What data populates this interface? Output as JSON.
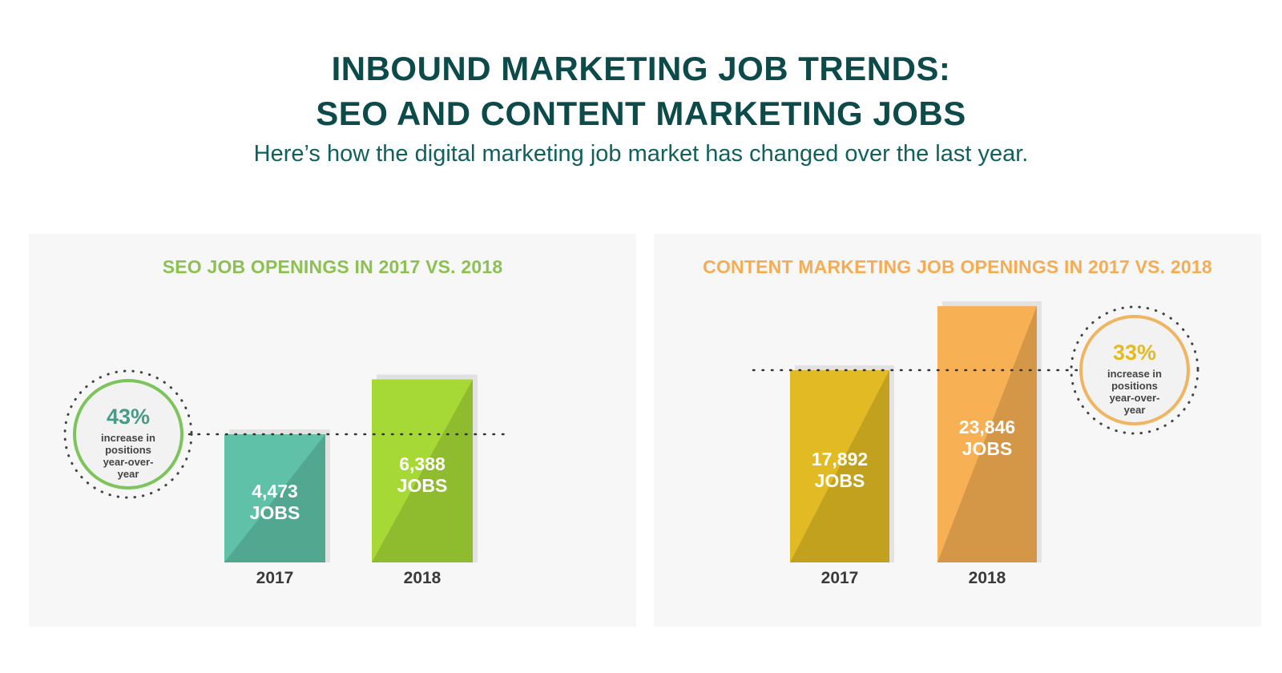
{
  "header": {
    "title_line1": "INBOUND MARKETING JOB TRENDS:",
    "title_line2": "SEO AND CONTENT MARKETING JOBS",
    "subtitle": "Here’s how the digital marketing job market has changed over the last year."
  },
  "colors": {
    "title": "#0d4a4a",
    "seo_title": "#8cc152",
    "content_title": "#f5ad55",
    "seo_2017": "#5fc2a8",
    "seo_2018": "#a6d935",
    "content_2017": "#e2bb24",
    "content_2018": "#f7b054",
    "seo_circle": "#7cc45b",
    "content_circle": "#f0b561"
  },
  "chart_data": [
    {
      "type": "bar",
      "title": "SEO JOB OPENINGS IN 2017 VS. 2018",
      "categories": [
        "2017",
        "2018"
      ],
      "values": [
        4473,
        6388
      ],
      "data_labels": [
        {
          "number": "4,473",
          "unit": "JOBS"
        },
        {
          "number": "6,388",
          "unit": "JOBS"
        }
      ],
      "annotation": {
        "value": "43%",
        "lines": [
          "increase in",
          "positions",
          "year-over-",
          "year"
        ]
      },
      "grid": false,
      "legend": "none"
    },
    {
      "type": "bar",
      "title": "CONTENT MARKETING JOB OPENINGS IN 2017 VS. 2018",
      "categories": [
        "2017",
        "2018"
      ],
      "values": [
        17892,
        23846
      ],
      "data_labels": [
        {
          "number": "17,892",
          "unit": "JOBS"
        },
        {
          "number": "23,846",
          "unit": "JOBS"
        }
      ],
      "annotation": {
        "value": "33%",
        "lines": [
          "increase in",
          "positions",
          "year-over-",
          "year"
        ]
      },
      "grid": false,
      "legend": "none"
    }
  ]
}
